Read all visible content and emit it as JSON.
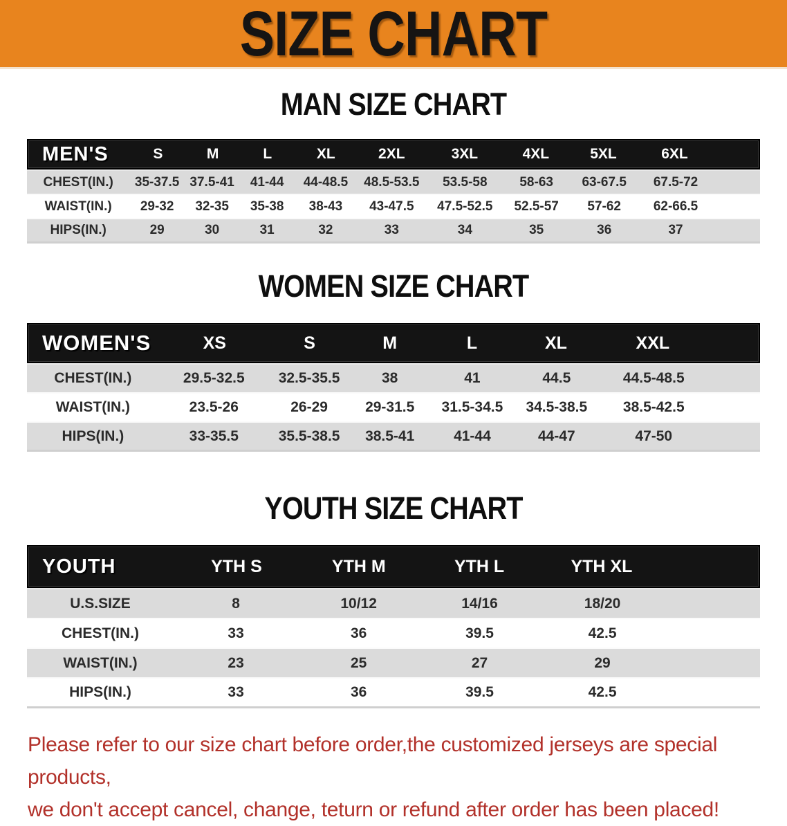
{
  "banner": {
    "title": "SIZE CHART"
  },
  "colors": {
    "banner_bg": "#E8841E",
    "header_bar": "#141414",
    "row_gray": "#DBDBDB",
    "disclaimer_red": "#B2312A"
  },
  "sections": {
    "men": {
      "heading": "MAN SIZE CHART",
      "corner_label": "MEN'S",
      "columns": [
        "S",
        "M",
        "L",
        "XL",
        "2XL",
        "3XL",
        "4XL",
        "5XL",
        "6XL"
      ],
      "rows": [
        {
          "label": "CHEST(IN.)",
          "values": [
            "35-37.5",
            "37.5-41",
            "41-44",
            "44-48.5",
            "48.5-53.5",
            "53.5-58",
            "58-63",
            "63-67.5",
            "67.5-72"
          ]
        },
        {
          "label": "WAIST(IN.)",
          "values": [
            "29-32",
            "32-35",
            "35-38",
            "38-43",
            "43-47.5",
            "47.5-52.5",
            "52.5-57",
            "57-62",
            "62-66.5"
          ]
        },
        {
          "label": "HIPS(IN.)",
          "values": [
            "29",
            "30",
            "31",
            "32",
            "33",
            "34",
            "35",
            "36",
            "37"
          ]
        }
      ]
    },
    "women": {
      "heading": "WOMEN SIZE CHART",
      "corner_label": "WOMEN'S",
      "columns": [
        "XS",
        "S",
        "M",
        "L",
        "XL",
        "XXL"
      ],
      "rows": [
        {
          "label": "CHEST(IN.)",
          "values": [
            "29.5-32.5",
            "32.5-35.5",
            "38",
            "41",
            "44.5",
            "44.5-48.5"
          ]
        },
        {
          "label": "WAIST(IN.)",
          "values": [
            "23.5-26",
            "26-29",
            "29-31.5",
            "31.5-34.5",
            "34.5-38.5",
            "38.5-42.5"
          ]
        },
        {
          "label": "HIPS(IN.)",
          "values": [
            "33-35.5",
            "35.5-38.5",
            "38.5-41",
            "41-44",
            "44-47",
            "47-50"
          ]
        }
      ]
    },
    "youth": {
      "heading": "YOUTH SIZE CHART",
      "corner_label": "YOUTH",
      "columns": [
        "YTH S",
        "YTH M",
        "YTH L",
        "YTH XL"
      ],
      "rows": [
        {
          "label": "U.S.SIZE",
          "values": [
            "8",
            "10/12",
            "14/16",
            "18/20"
          ]
        },
        {
          "label": "CHEST(IN.)",
          "values": [
            "33",
            "36",
            "39.5",
            "42.5"
          ]
        },
        {
          "label": "WAIST(IN.)",
          "values": [
            "23",
            "25",
            "27",
            "29"
          ]
        },
        {
          "label": "HIPS(IN.)",
          "values": [
            "33",
            "36",
            "39.5",
            "42.5"
          ]
        }
      ]
    }
  },
  "disclaimer": {
    "line1": "Please refer to our size chart before order,the customized jerseys are special products,",
    "line2": "we don't accept cancel, change, teturn or refund after order has been placed!"
  }
}
